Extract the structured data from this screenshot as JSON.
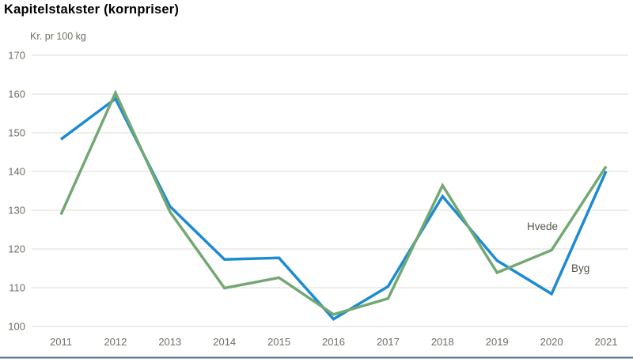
{
  "title": "Kapitelstakster (kornpriser)",
  "chart_data": {
    "type": "line",
    "title": "Kapitelstakster (kornpriser)",
    "unit_label": "Kr. pr 100 kg",
    "x": [
      "2011",
      "2012",
      "2013",
      "2014",
      "2015",
      "2016",
      "2017",
      "2018",
      "2019",
      "2020",
      "2021"
    ],
    "series": [
      {
        "name": "Byg",
        "color": "#1d8bd1",
        "values": [
          148.3,
          158.8,
          131.0,
          117.3,
          117.7,
          101.9,
          110.3,
          133.6,
          117.0,
          108.4,
          140.1
        ]
      },
      {
        "name": "Hvede",
        "color": "#74a873",
        "values": [
          128.9,
          160.3,
          129.6,
          109.9,
          112.6,
          103.1,
          107.2,
          136.4,
          113.9,
          119.7,
          141.3
        ]
      }
    ],
    "ylim": [
      100,
      170
    ],
    "yticks": [
      100,
      110,
      120,
      130,
      140,
      150,
      160,
      170
    ],
    "grid": true,
    "legend_position": "inline-labels-right",
    "annotations": [
      {
        "text": "Hvede",
        "series": "Hvede"
      },
      {
        "text": "Byg",
        "series": "Byg"
      }
    ]
  },
  "colors": {
    "gridline": "#dcdcd2",
    "axis_text": "#6f6f63",
    "series_label": "#55554d",
    "bottom_rule": "#4b6d80",
    "title_text": "#000000",
    "background": "#ffffff"
  }
}
